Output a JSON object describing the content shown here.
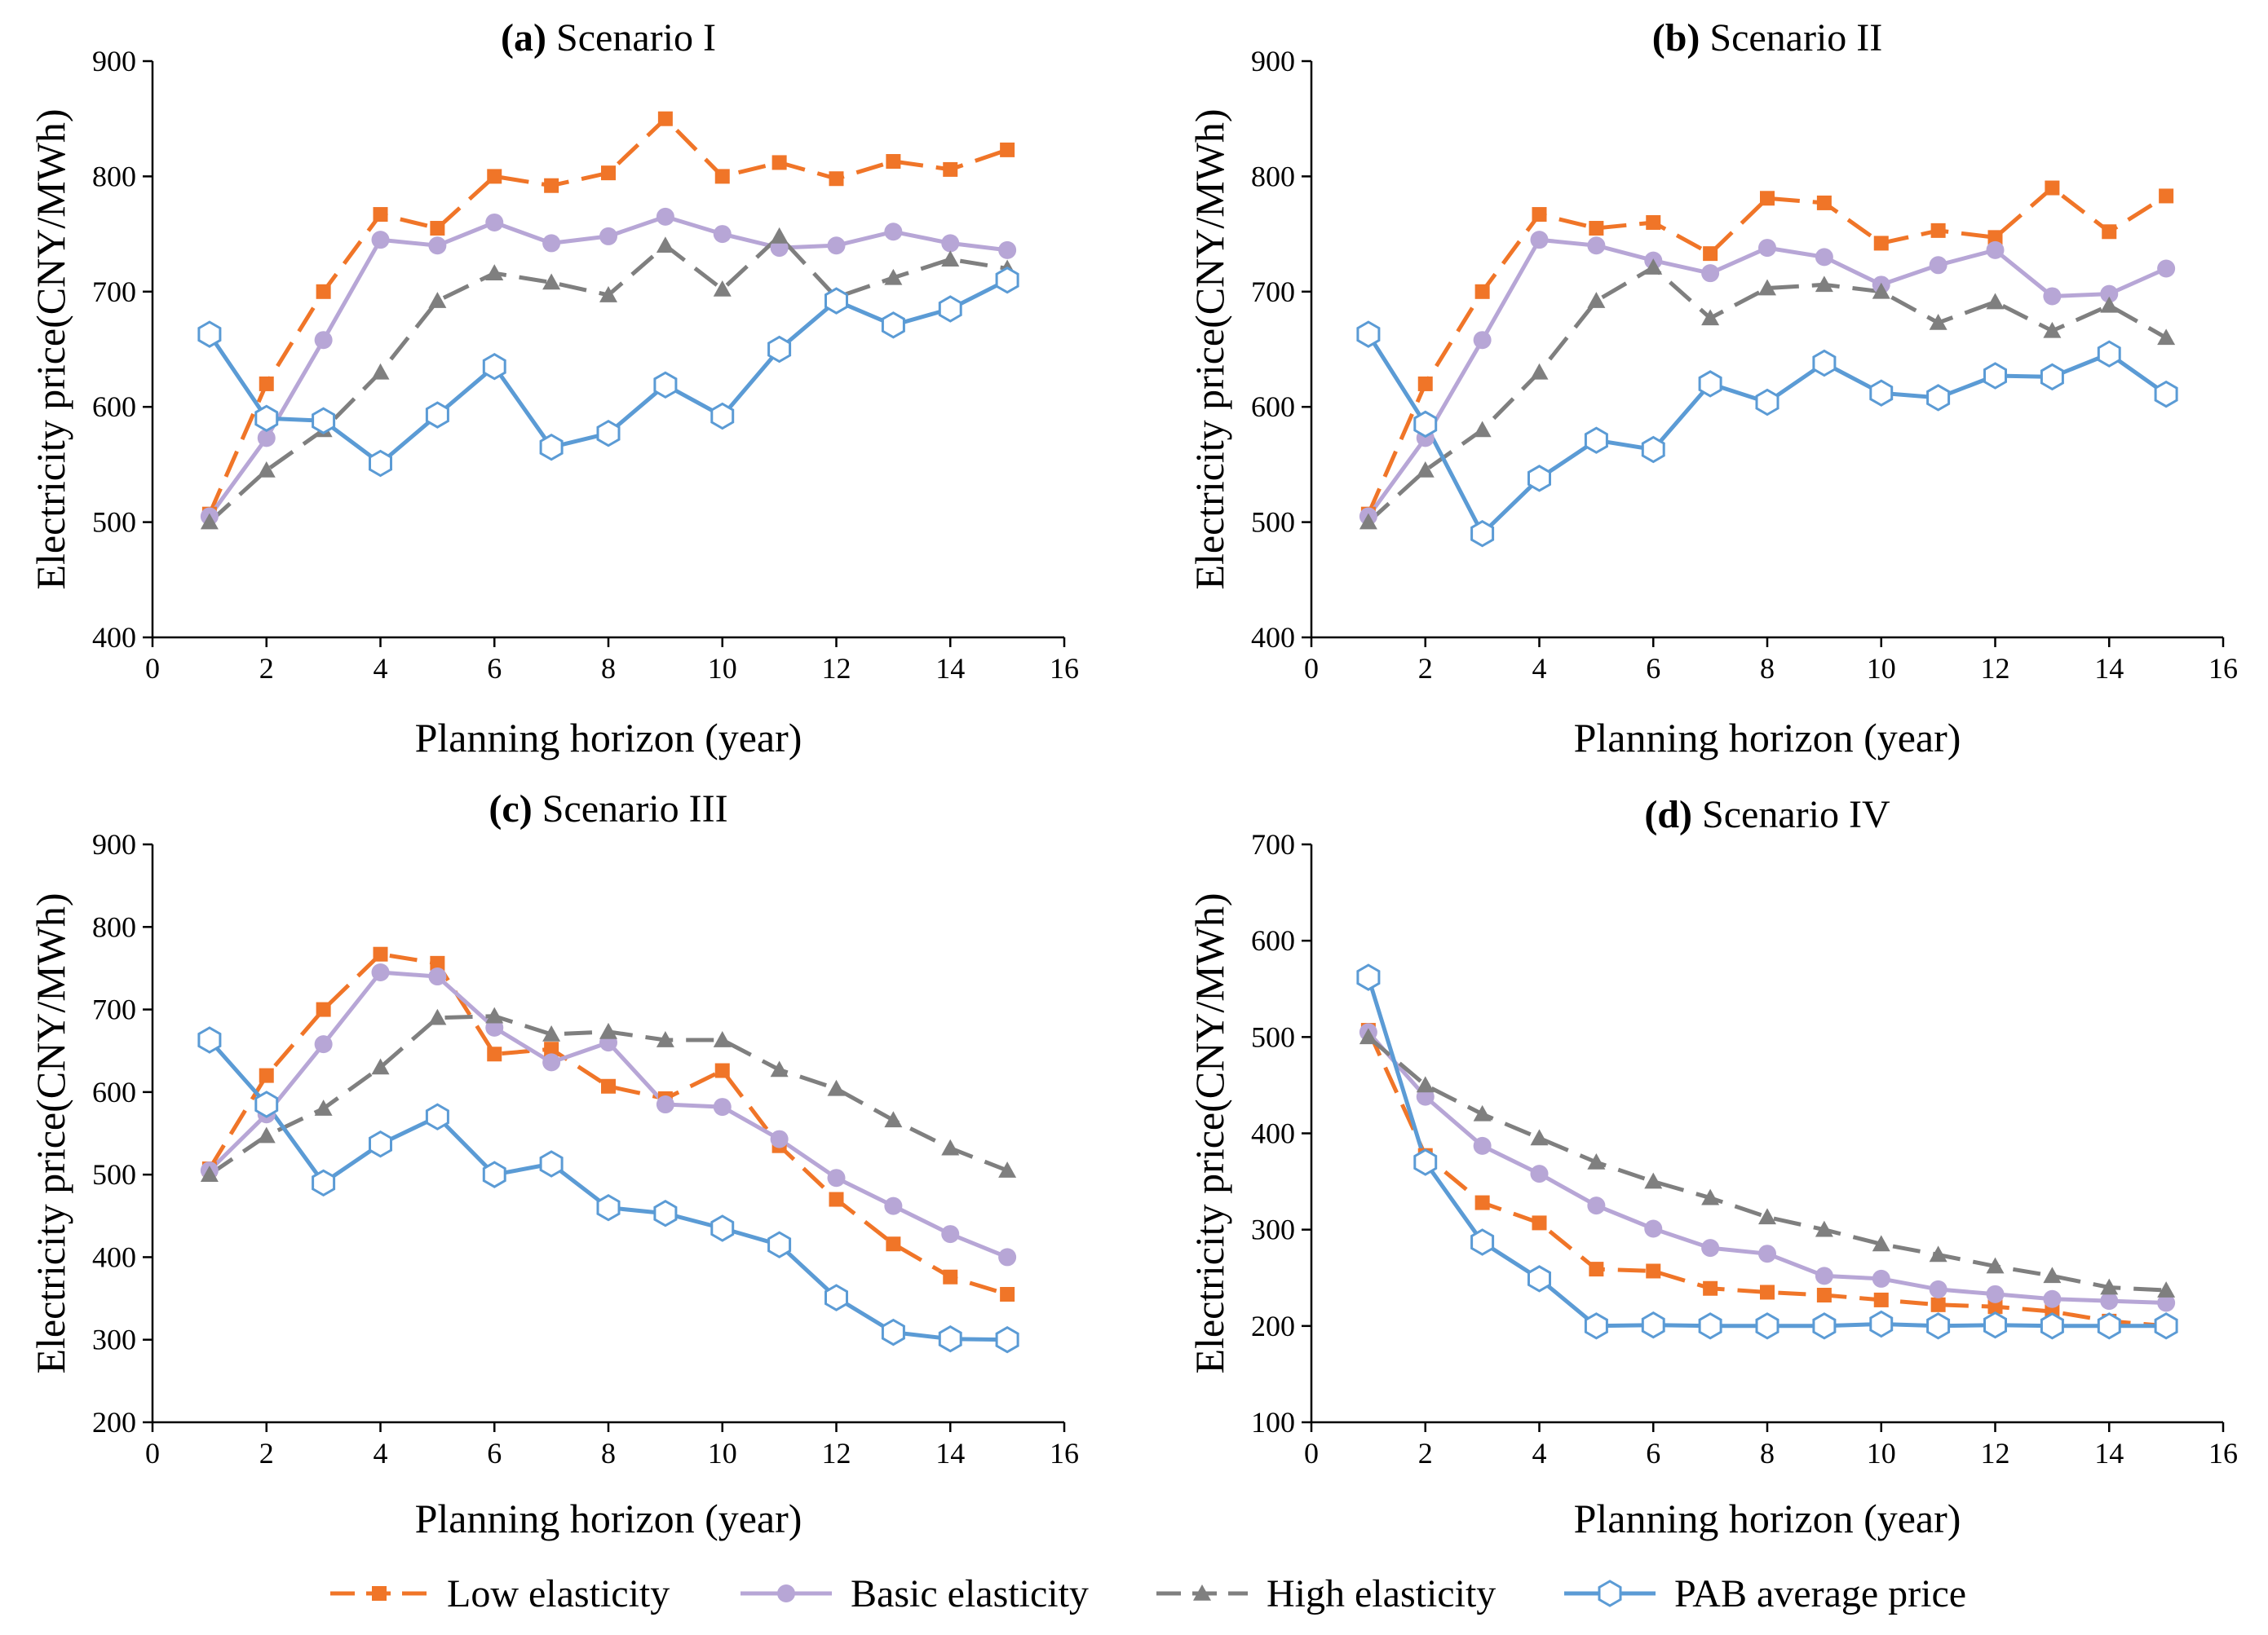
{
  "colors": {
    "low": "#f07528",
    "basic": "#b7a6d6",
    "high": "#7f7f7f",
    "pab": "#5b9bd5",
    "axis": "#000000"
  },
  "legend": [
    {
      "key": "low",
      "label": "Low elasticity",
      "marker": "square",
      "dash": "dashed"
    },
    {
      "key": "basic",
      "label": "Basic elasticity",
      "marker": "circle",
      "dash": "solid"
    },
    {
      "key": "high",
      "label": "High elasticity",
      "marker": "triangle",
      "dash": "dashed"
    },
    {
      "key": "pab",
      "label": "PAB average price",
      "marker": "hexagon",
      "dash": "solid"
    }
  ],
  "chart_data": [
    {
      "type": "line",
      "panel_letter": "(a)",
      "panel_name": " Scenario I",
      "xlabel": "Planning horizon (year)",
      "ylabel": "Electricity price(CNY/MWh)",
      "xlim": [
        0,
        16
      ],
      "xticks": [
        0,
        2,
        4,
        6,
        8,
        10,
        12,
        14,
        16
      ],
      "ylim": [
        400,
        900
      ],
      "yticks": [
        400,
        500,
        600,
        700,
        800,
        900
      ],
      "x": [
        1,
        2,
        3,
        4,
        5,
        6,
        7,
        8,
        9,
        10,
        11,
        12,
        13,
        14,
        15
      ],
      "series": [
        {
          "key": "low",
          "name": "Low elasticity",
          "values": [
            507,
            620,
            700,
            767,
            755,
            800,
            792,
            803,
            850,
            800,
            812,
            798,
            813,
            806,
            823
          ]
        },
        {
          "key": "basic",
          "name": "Basic elasticity",
          "values": [
            505,
            573,
            658,
            745,
            740,
            760,
            742,
            748,
            765,
            750,
            738,
            740,
            752,
            742,
            736
          ]
        },
        {
          "key": "high",
          "name": "High elasticity",
          "values": [
            500,
            545,
            580,
            630,
            692,
            716,
            708,
            697,
            740,
            702,
            748,
            695,
            712,
            728,
            720
          ]
        },
        {
          "key": "pab",
          "name": "PAB average price",
          "values": [
            663,
            590,
            588,
            551,
            593,
            635,
            565,
            577,
            619,
            592,
            650,
            692,
            671,
            685,
            710
          ]
        }
      ]
    },
    {
      "type": "line",
      "panel_letter": "(b)",
      "panel_name": " Scenario II",
      "xlabel": "Planning horizon (year)",
      "ylabel": "Electricity price(CNY/MWh)",
      "xlim": [
        0,
        16
      ],
      "xticks": [
        0,
        2,
        4,
        6,
        8,
        10,
        12,
        14,
        16
      ],
      "ylim": [
        400,
        900
      ],
      "yticks": [
        400,
        500,
        600,
        700,
        800,
        900
      ],
      "x": [
        1,
        2,
        3,
        4,
        5,
        6,
        7,
        8,
        9,
        10,
        11,
        12,
        13,
        14,
        15
      ],
      "series": [
        {
          "key": "low",
          "name": "Low elasticity",
          "values": [
            507,
            620,
            700,
            767,
            755,
            760,
            733,
            781,
            777,
            742,
            753,
            747,
            790,
            752,
            783
          ]
        },
        {
          "key": "basic",
          "name": "Basic elasticity",
          "values": [
            505,
            573,
            658,
            745,
            740,
            727,
            716,
            738,
            730,
            706,
            723,
            736,
            696,
            698,
            720
          ]
        },
        {
          "key": "high",
          "name": "High elasticity",
          "values": [
            500,
            545,
            580,
            630,
            692,
            721,
            677,
            703,
            706,
            700,
            673,
            691,
            666,
            688,
            660
          ]
        },
        {
          "key": "pab",
          "name": "PAB average price",
          "values": [
            663,
            585,
            490,
            538,
            571,
            563,
            620,
            604,
            638,
            612,
            608,
            627,
            626,
            646,
            611
          ]
        }
      ]
    },
    {
      "type": "line",
      "panel_letter": "(c)",
      "panel_name": " Scenario III",
      "xlabel": "Planning horizon (year)",
      "ylabel": "Electricity price(CNY/MWh)",
      "xlim": [
        0,
        16
      ],
      "xticks": [
        0,
        2,
        4,
        6,
        8,
        10,
        12,
        14,
        16
      ],
      "ylim": [
        200,
        900
      ],
      "yticks": [
        200,
        300,
        400,
        500,
        600,
        700,
        800,
        900
      ],
      "x": [
        1,
        2,
        3,
        4,
        5,
        6,
        7,
        8,
        9,
        10,
        11,
        12,
        13,
        14,
        15
      ],
      "series": [
        {
          "key": "low",
          "name": "Low elasticity",
          "values": [
            507,
            620,
            700,
            767,
            756,
            646,
            652,
            607,
            592,
            626,
            535,
            470,
            416,
            376,
            355
          ]
        },
        {
          "key": "basic",
          "name": "Basic elasticity",
          "values": [
            505,
            573,
            658,
            745,
            740,
            678,
            636,
            660,
            585,
            582,
            543,
            496,
            462,
            428,
            400
          ]
        },
        {
          "key": "high",
          "name": "High elasticity",
          "values": [
            500,
            547,
            580,
            630,
            690,
            692,
            670,
            673,
            663,
            663,
            627,
            604,
            566,
            532,
            505
          ]
        },
        {
          "key": "pab",
          "name": "PAB average price",
          "values": [
            663,
            585,
            490,
            537,
            570,
            500,
            513,
            460,
            453,
            435,
            415,
            351,
            309,
            301,
            300
          ]
        }
      ]
    },
    {
      "type": "line",
      "panel_letter": "(d)",
      "panel_name": " Scenario IV",
      "xlabel": "Planning horizon (year)",
      "ylabel": "Electricity price(CNY/MWh)",
      "xlim": [
        0,
        16
      ],
      "xticks": [
        0,
        2,
        4,
        6,
        8,
        10,
        12,
        14,
        16
      ],
      "ylim": [
        100,
        700
      ],
      "yticks": [
        100,
        200,
        300,
        400,
        500,
        600,
        700
      ],
      "x": [
        1,
        2,
        3,
        4,
        5,
        6,
        7,
        8,
        9,
        10,
        11,
        12,
        13,
        14,
        15
      ],
      "series": [
        {
          "key": "low",
          "name": "Low elasticity",
          "values": [
            507,
            377,
            328,
            307,
            259,
            257,
            239,
            235,
            232,
            227,
            222,
            220,
            215,
            205,
            200
          ]
        },
        {
          "key": "basic",
          "name": "Basic elasticity",
          "values": [
            505,
            438,
            387,
            358,
            325,
            301,
            281,
            275,
            252,
            249,
            238,
            233,
            228,
            226,
            224
          ]
        },
        {
          "key": "high",
          "name": "High elasticity",
          "values": [
            500,
            450,
            420,
            395,
            370,
            350,
            333,
            313,
            300,
            285,
            274,
            262,
            252,
            240,
            237
          ]
        },
        {
          "key": "pab",
          "name": "PAB average price",
          "values": [
            562,
            370,
            287,
            249,
            200,
            201,
            200,
            200,
            200,
            202,
            200,
            201,
            200,
            200,
            200
          ]
        }
      ]
    }
  ]
}
